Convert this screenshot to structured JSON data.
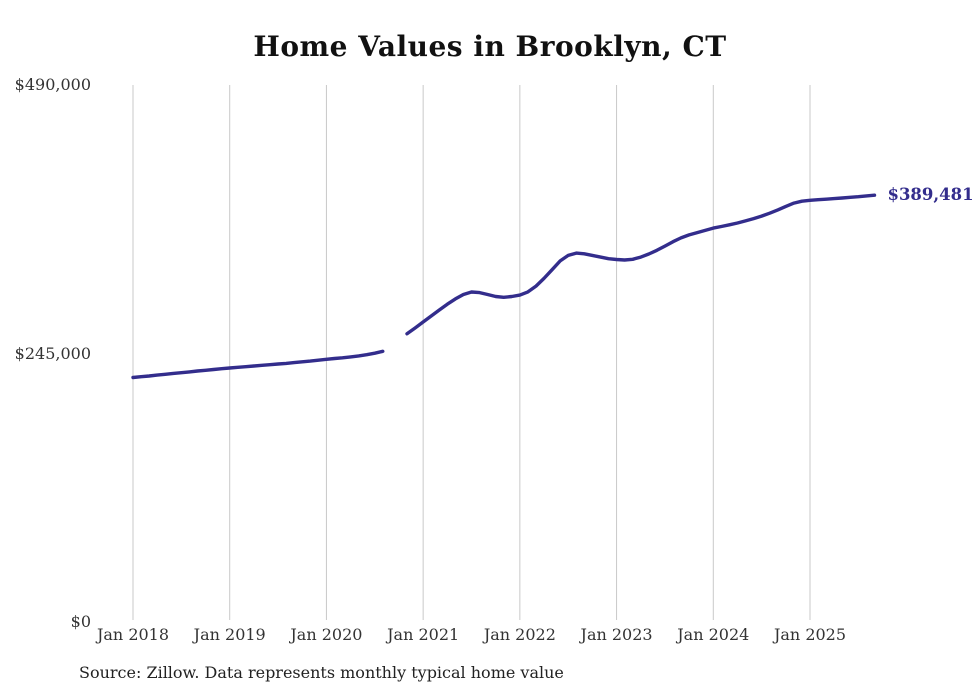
{
  "header": {
    "title": "Home Values in Brooklyn, CT"
  },
  "chart_data": {
    "type": "line",
    "title": "Home Values in Brooklyn, CT",
    "xlabel": "",
    "ylabel": "",
    "ylim": [
      0,
      490000
    ],
    "grid": "vertical-only",
    "legend": "none",
    "start_month": "2018-01",
    "end_month": "2025-09",
    "frequency": "monthly",
    "data_gap_months": [
      "2020-09",
      "2020-10"
    ],
    "x_tick_labels": [
      "Jan 2018",
      "Jan 2019",
      "Jan 2020",
      "Jan 2021",
      "Jan 2022",
      "Jan 2023",
      "Jan 2024",
      "Jan 2025"
    ],
    "y_ticks": [
      0,
      245000,
      490000
    ],
    "y_tick_labels": [
      "$0",
      "$245,000",
      "$490,000"
    ],
    "colors": {
      "line": "#332d8c",
      "grid": "#c9c9c9",
      "axis_text": "#333333",
      "title_text": "#111111"
    },
    "series": [
      {
        "name": "Typical home value",
        "values": [
          223100,
          223800,
          224500,
          225300,
          226000,
          226800,
          227500,
          228200,
          229000,
          229700,
          230400,
          231100,
          231800,
          232400,
          233000,
          233600,
          234200,
          234800,
          235400,
          236000,
          236700,
          237400,
          238100,
          238900,
          239700,
          240400,
          241100,
          241900,
          242800,
          243900,
          245300,
          247000,
          null,
          null,
          263000,
          268300,
          273700,
          279200,
          284700,
          290000,
          294800,
          298800,
          301100,
          300600,
          298800,
          297000,
          296300,
          297000,
          298300,
          301200,
          306500,
          313500,
          321500,
          329500,
          334500,
          336600,
          336000,
          334500,
          333000,
          331500,
          330800,
          330300,
          331000,
          333000,
          335800,
          339200,
          343000,
          347000,
          350500,
          353200,
          355300,
          357300,
          359400,
          360900,
          362400,
          364100,
          366000,
          368100,
          370400,
          373000,
          376000,
          379200,
          382200,
          384000,
          384800,
          385300,
          385800,
          386300,
          386900,
          387500,
          388100,
          388800,
          389481
        ]
      }
    ]
  },
  "annotations": {
    "end_value_label": "$389,481"
  },
  "footer": {
    "source": "Source: Zillow. Data represents monthly typical home value"
  }
}
